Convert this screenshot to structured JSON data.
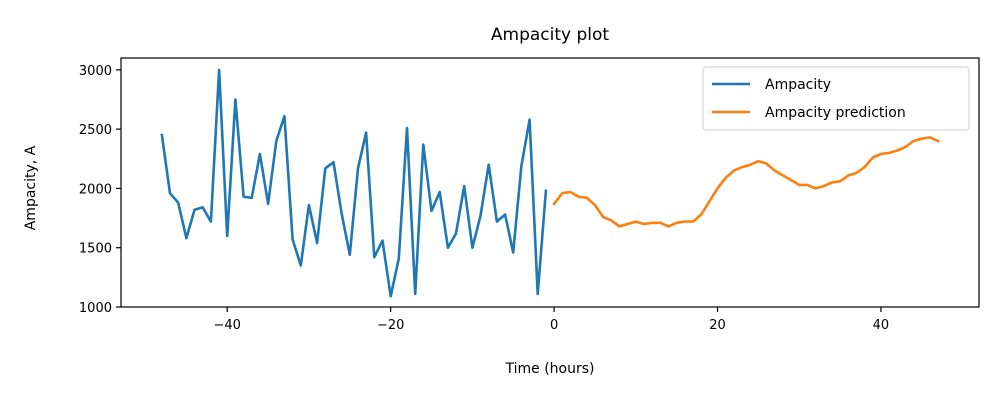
{
  "chart_data": {
    "type": "line",
    "title": "Ampacity plot",
    "xlabel": "Time (hours)",
    "ylabel": "Ampacity, A",
    "xlim": [
      -53,
      52
    ],
    "ylim": [
      1000,
      3100
    ],
    "xticks": [
      -40,
      -20,
      0,
      20,
      40
    ],
    "xtick_labels": [
      "−40",
      "−20",
      "0",
      "20",
      "40"
    ],
    "yticks": [
      1000,
      1500,
      2000,
      2500,
      3000
    ],
    "ytick_labels": [
      "1000",
      "1500",
      "2000",
      "2500",
      "3000"
    ],
    "grid": false,
    "legend_position": "top-right",
    "series": [
      {
        "name": "Ampacity",
        "color": "#1f77b4",
        "x": [
          -48,
          -47,
          -46,
          -45,
          -44,
          -43,
          -42,
          -41,
          -40,
          -39,
          -38,
          -37,
          -36,
          -35,
          -34,
          -33,
          -32,
          -31,
          -30,
          -29,
          -28,
          -27,
          -26,
          -25,
          -24,
          -23,
          -22,
          -21,
          -20,
          -19,
          -18,
          -17,
          -16,
          -15,
          -14,
          -13,
          -12,
          -11,
          -10,
          -9,
          -8,
          -7,
          -6,
          -5,
          -4,
          -3,
          -2,
          -1
        ],
        "y": [
          2450,
          1960,
          1880,
          1580,
          1820,
          1840,
          1720,
          3000,
          1600,
          2750,
          1930,
          1920,
          2290,
          1870,
          2400,
          2610,
          1570,
          1350,
          1860,
          1540,
          2170,
          2220,
          1790,
          1440,
          2170,
          2470,
          1420,
          1560,
          1090,
          1410,
          2510,
          1110,
          2370,
          1810,
          1970,
          1500,
          1620,
          2020,
          1500,
          1770,
          2200,
          1720,
          1780,
          1460,
          2190,
          2580,
          1110,
          1980
        ]
      },
      {
        "name": "Ampacity prediction",
        "color": "#ff7f0e",
        "x": [
          0,
          1,
          2,
          3,
          4,
          5,
          6,
          7,
          8,
          9,
          10,
          11,
          12,
          13,
          14,
          15,
          16,
          17,
          18,
          19,
          20,
          21,
          22,
          23,
          24,
          25,
          26,
          27,
          28,
          29,
          30,
          31,
          32,
          33,
          34,
          35,
          36,
          37,
          38,
          39,
          40,
          41,
          42,
          43,
          44,
          45,
          46,
          47
        ],
        "y": [
          1870,
          1960,
          1970,
          1930,
          1920,
          1860,
          1760,
          1730,
          1680,
          1700,
          1720,
          1700,
          1710,
          1710,
          1680,
          1710,
          1720,
          1720,
          1780,
          1890,
          2000,
          2090,
          2150,
          2180,
          2200,
          2230,
          2210,
          2150,
          2110,
          2070,
          2030,
          2030,
          2000,
          2020,
          2050,
          2060,
          2110,
          2130,
          2180,
          2260,
          2290,
          2300,
          2320,
          2350,
          2400,
          2420,
          2430,
          2400
        ]
      }
    ]
  }
}
